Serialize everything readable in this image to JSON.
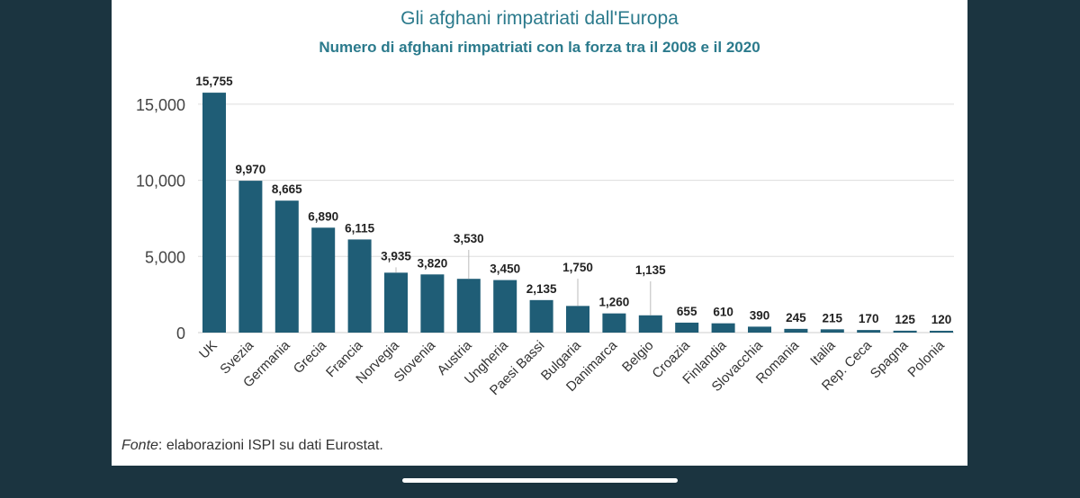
{
  "title": "Gli afghani rimpatriati dall'Europa",
  "subtitle": "Numero di afghani rimpatriati con la forza tra il 2008 e il 2020",
  "source": {
    "label": "Fonte",
    "text": ": elaborazioni ISPI su dati Eurostat."
  },
  "colors": {
    "bar": "#1f5d76",
    "title": "#2b7a8c",
    "background": "#1b3440"
  },
  "chart_data": {
    "type": "bar",
    "title": "Gli afghani rimpatriati dall'Europa",
    "subtitle": "Numero di afghani rimpatriati con la forza tra il 2008 e il 2020",
    "xlabel": "",
    "ylabel": "",
    "ylim": [
      0,
      17000
    ],
    "yticks": [
      0,
      5000,
      10000,
      15000
    ],
    "ytick_labels": [
      "0",
      "5,000",
      "10,000",
      "15,000"
    ],
    "grid": true,
    "categories": [
      "UK",
      "Svezia",
      "Germania",
      "Grecia",
      "Francia",
      "Norvegia",
      "Slovenia",
      "Austria",
      "Ungheria",
      "Paesi Bassi",
      "Bulgaria",
      "Danimarca",
      "Belgio",
      "Croazia",
      "Finlandia",
      "Slovacchia",
      "Romania",
      "Italia",
      "Rep. Ceca",
      "Spagna",
      "Polonia"
    ],
    "values": [
      15755,
      9970,
      8665,
      6890,
      6115,
      3935,
      3820,
      3530,
      3450,
      2135,
      1750,
      1260,
      1135,
      655,
      610,
      390,
      245,
      215,
      170,
      125,
      120
    ],
    "value_labels": [
      "15,755",
      "9,970",
      "8,665",
      "6,890",
      "6,115",
      "3,935",
      "3,820",
      "3,530",
      "3,450",
      "2,135",
      "1,750",
      "1,260",
      "1,135",
      "655",
      "610",
      "390",
      "245",
      "215",
      "170",
      "125",
      "120"
    ]
  }
}
